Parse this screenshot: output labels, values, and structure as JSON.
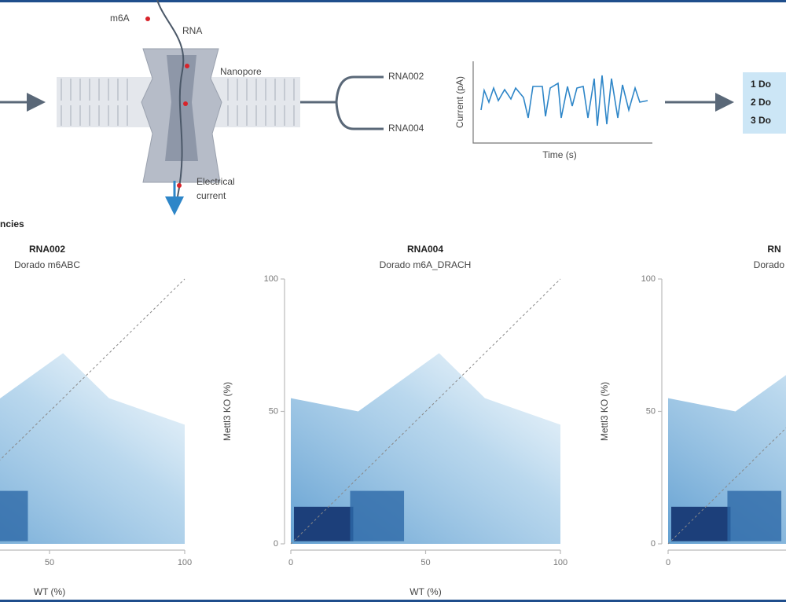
{
  "diagram": {
    "labels": {
      "m6a": "m6A",
      "rna": "RNA",
      "nanopore": "Nanopore",
      "current_1": "Electrical",
      "current_2": "current"
    },
    "branches": [
      "RNA002",
      "RNA004"
    ],
    "trace": {
      "ylabel": "Current (pA)",
      "xlabel": "Time (s)"
    },
    "steps": [
      "1 Do",
      "2 Do",
      "3 Do"
    ]
  },
  "panel_label": "ncies",
  "chart_data": [
    {
      "type": "scatter",
      "title": "RNA002",
      "subtitle": "Dorado m6ABC",
      "xlabel": "WT (%)",
      "xlim": [
        0,
        100
      ],
      "ylim": [
        0,
        100
      ],
      "xticks": [
        50,
        100
      ]
    },
    {
      "type": "scatter",
      "title": "RNA004",
      "subtitle": "Dorado m6A_DRACH",
      "xlabel": "WT (%)",
      "ylabel": "Mettl3 KO (%)",
      "xlim": [
        0,
        100
      ],
      "ylim": [
        0,
        100
      ],
      "xticks": [
        0,
        50,
        100
      ],
      "yticks": [
        0,
        50,
        100
      ]
    },
    {
      "type": "scatter",
      "title": "RN",
      "subtitle": "Dorado m",
      "ylabel": "Mettl3 KO (%)",
      "xlim": [
        0,
        100
      ],
      "ylim": [
        0,
        100
      ],
      "xticks": [
        0
      ],
      "yticks": [
        0,
        50,
        100
      ]
    }
  ]
}
